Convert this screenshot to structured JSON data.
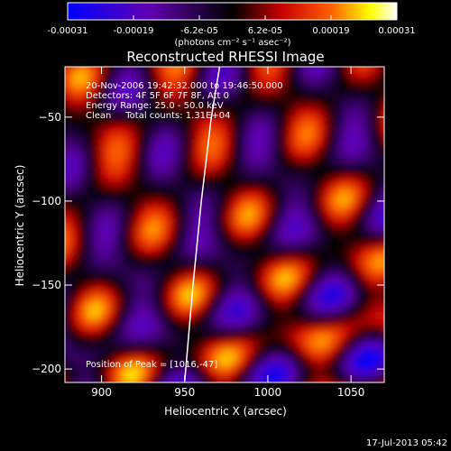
{
  "chart_data": {
    "type": "heatmap",
    "title": "Reconstructed RHESSI Image",
    "xlabel": "Heliocentric X (arcsec)",
    "ylabel": "Heliocentric Y (arcsec)",
    "xlim": [
      878,
      1070
    ],
    "ylim": [
      -208,
      -20
    ],
    "x_ticks": [
      900,
      950,
      1000,
      1050
    ],
    "y_ticks": [
      -50,
      -100,
      -150,
      -200
    ],
    "colorbar": {
      "range": [
        -0.00031,
        0.00031
      ],
      "ticks": [
        "-0.00031",
        "-0.00019",
        "-6.2e-05",
        "6.2e-05",
        "0.00019",
        "0.00031"
      ],
      "unit_label": "(photons cm⁻² s⁻¹ asec⁻²)",
      "colormap": [
        "#0000ff",
        "#6000b0",
        "#000000",
        "#c80000",
        "#ff6000",
        "#ffff00",
        "#ffffff"
      ]
    },
    "info_lines": [
      "20-Nov-2006 19:42:32.000 to 19:46:50.000",
      "Detectors: 4F 5F 6F 7F 8F, Att 0",
      "Energy Range: 25.0 - 50.0 keV",
      "Clean     Total counts: 1.31E+04"
    ],
    "peak_text": "Position of Peak = [1016,-47]",
    "limb_curve": [
      [
        950,
        -207
      ],
      [
        955,
        -150
      ],
      [
        960,
        -100
      ],
      [
        966,
        -50
      ],
      [
        971,
        -20
      ]
    ],
    "timestamp": "17-Jul-2013 05:42"
  }
}
